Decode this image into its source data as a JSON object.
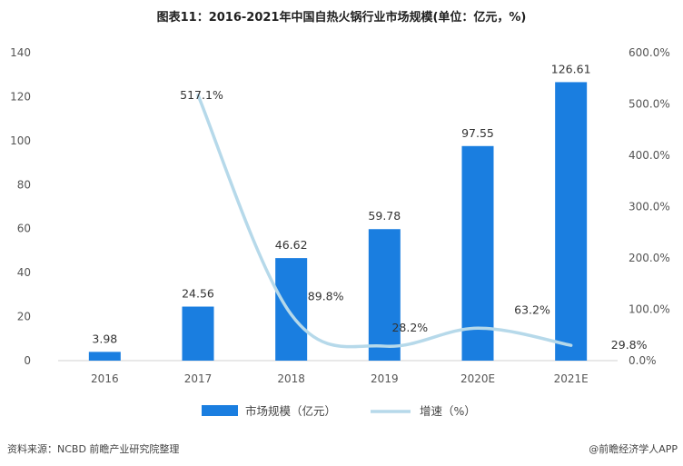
{
  "chart_data": {
    "type": "bar",
    "title": "图表11：2016-2021年中国自热火锅行业市场规模(单位：亿元，%)",
    "categories": [
      "2016",
      "2017",
      "2018",
      "2019",
      "2020E",
      "2021E"
    ],
    "series": [
      {
        "name": "市场规模（亿元）",
        "type": "bar",
        "axis": "left",
        "color": "#1a7ee0",
        "values": [
          3.98,
          24.56,
          46.62,
          59.78,
          97.55,
          126.61
        ],
        "labels": [
          "3.98",
          "24.56",
          "46.62",
          "59.78",
          "97.55",
          "126.61"
        ]
      },
      {
        "name": "增速（%）",
        "type": "line",
        "axis": "right",
        "color": "#b6d9ea",
        "values": [
          null,
          517.1,
          89.8,
          28.2,
          63.2,
          29.8
        ],
        "labels": [
          "",
          "517.1%",
          "89.8%",
          "28.2%",
          "63.2%",
          "29.8%"
        ]
      }
    ],
    "y_left": {
      "min": 0,
      "max": 140,
      "ticks": [
        "0",
        "20",
        "40",
        "60",
        "80",
        "100",
        "120",
        "140"
      ]
    },
    "y_right": {
      "min": 0,
      "max": 600,
      "ticks": [
        "0.0%",
        "100.0%",
        "200.0%",
        "300.0%",
        "400.0%",
        "500.0%",
        "600.0%"
      ]
    },
    "grid": false,
    "legend": "bottom-center"
  },
  "footer": {
    "source": "资料来源：NCBD 前瞻产业研究院整理",
    "brand": "@前瞻经济学人APP"
  }
}
